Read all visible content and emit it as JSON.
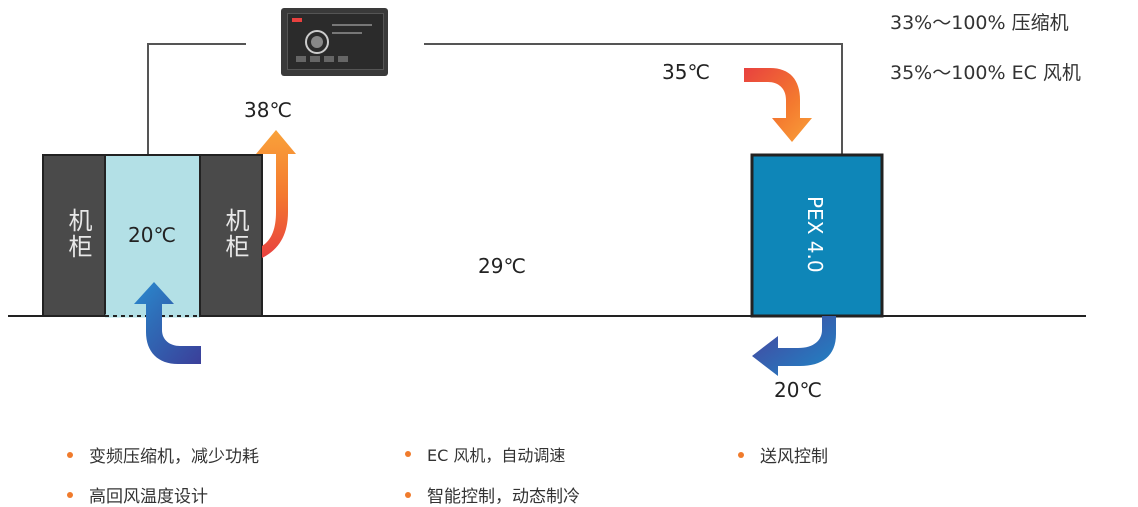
{
  "specs": {
    "compressor": "33%～100% 压缩机",
    "fan": "35%～100% EC  风机"
  },
  "temperatures": {
    "controller_right": "35℃",
    "cabinet_hot": "38℃",
    "cold_aisle": "20℃",
    "room": "29℃",
    "supply": "20℃"
  },
  "cabinet_left_label": "机柜",
  "cabinet_right_label": "机柜",
  "unit_label": "PEX 4.0",
  "features": [
    "变频压缩机，减少功耗",
    "EC 风机，自动调速",
    "送风控制",
    "高回风温度设计",
    "智能控制，动态制冷"
  ],
  "colors": {
    "cabinet": "#4a4a4a",
    "cold_aisle": "#b3e0e6",
    "unit": "#0e86b8",
    "bullet": "#f07b2c"
  }
}
